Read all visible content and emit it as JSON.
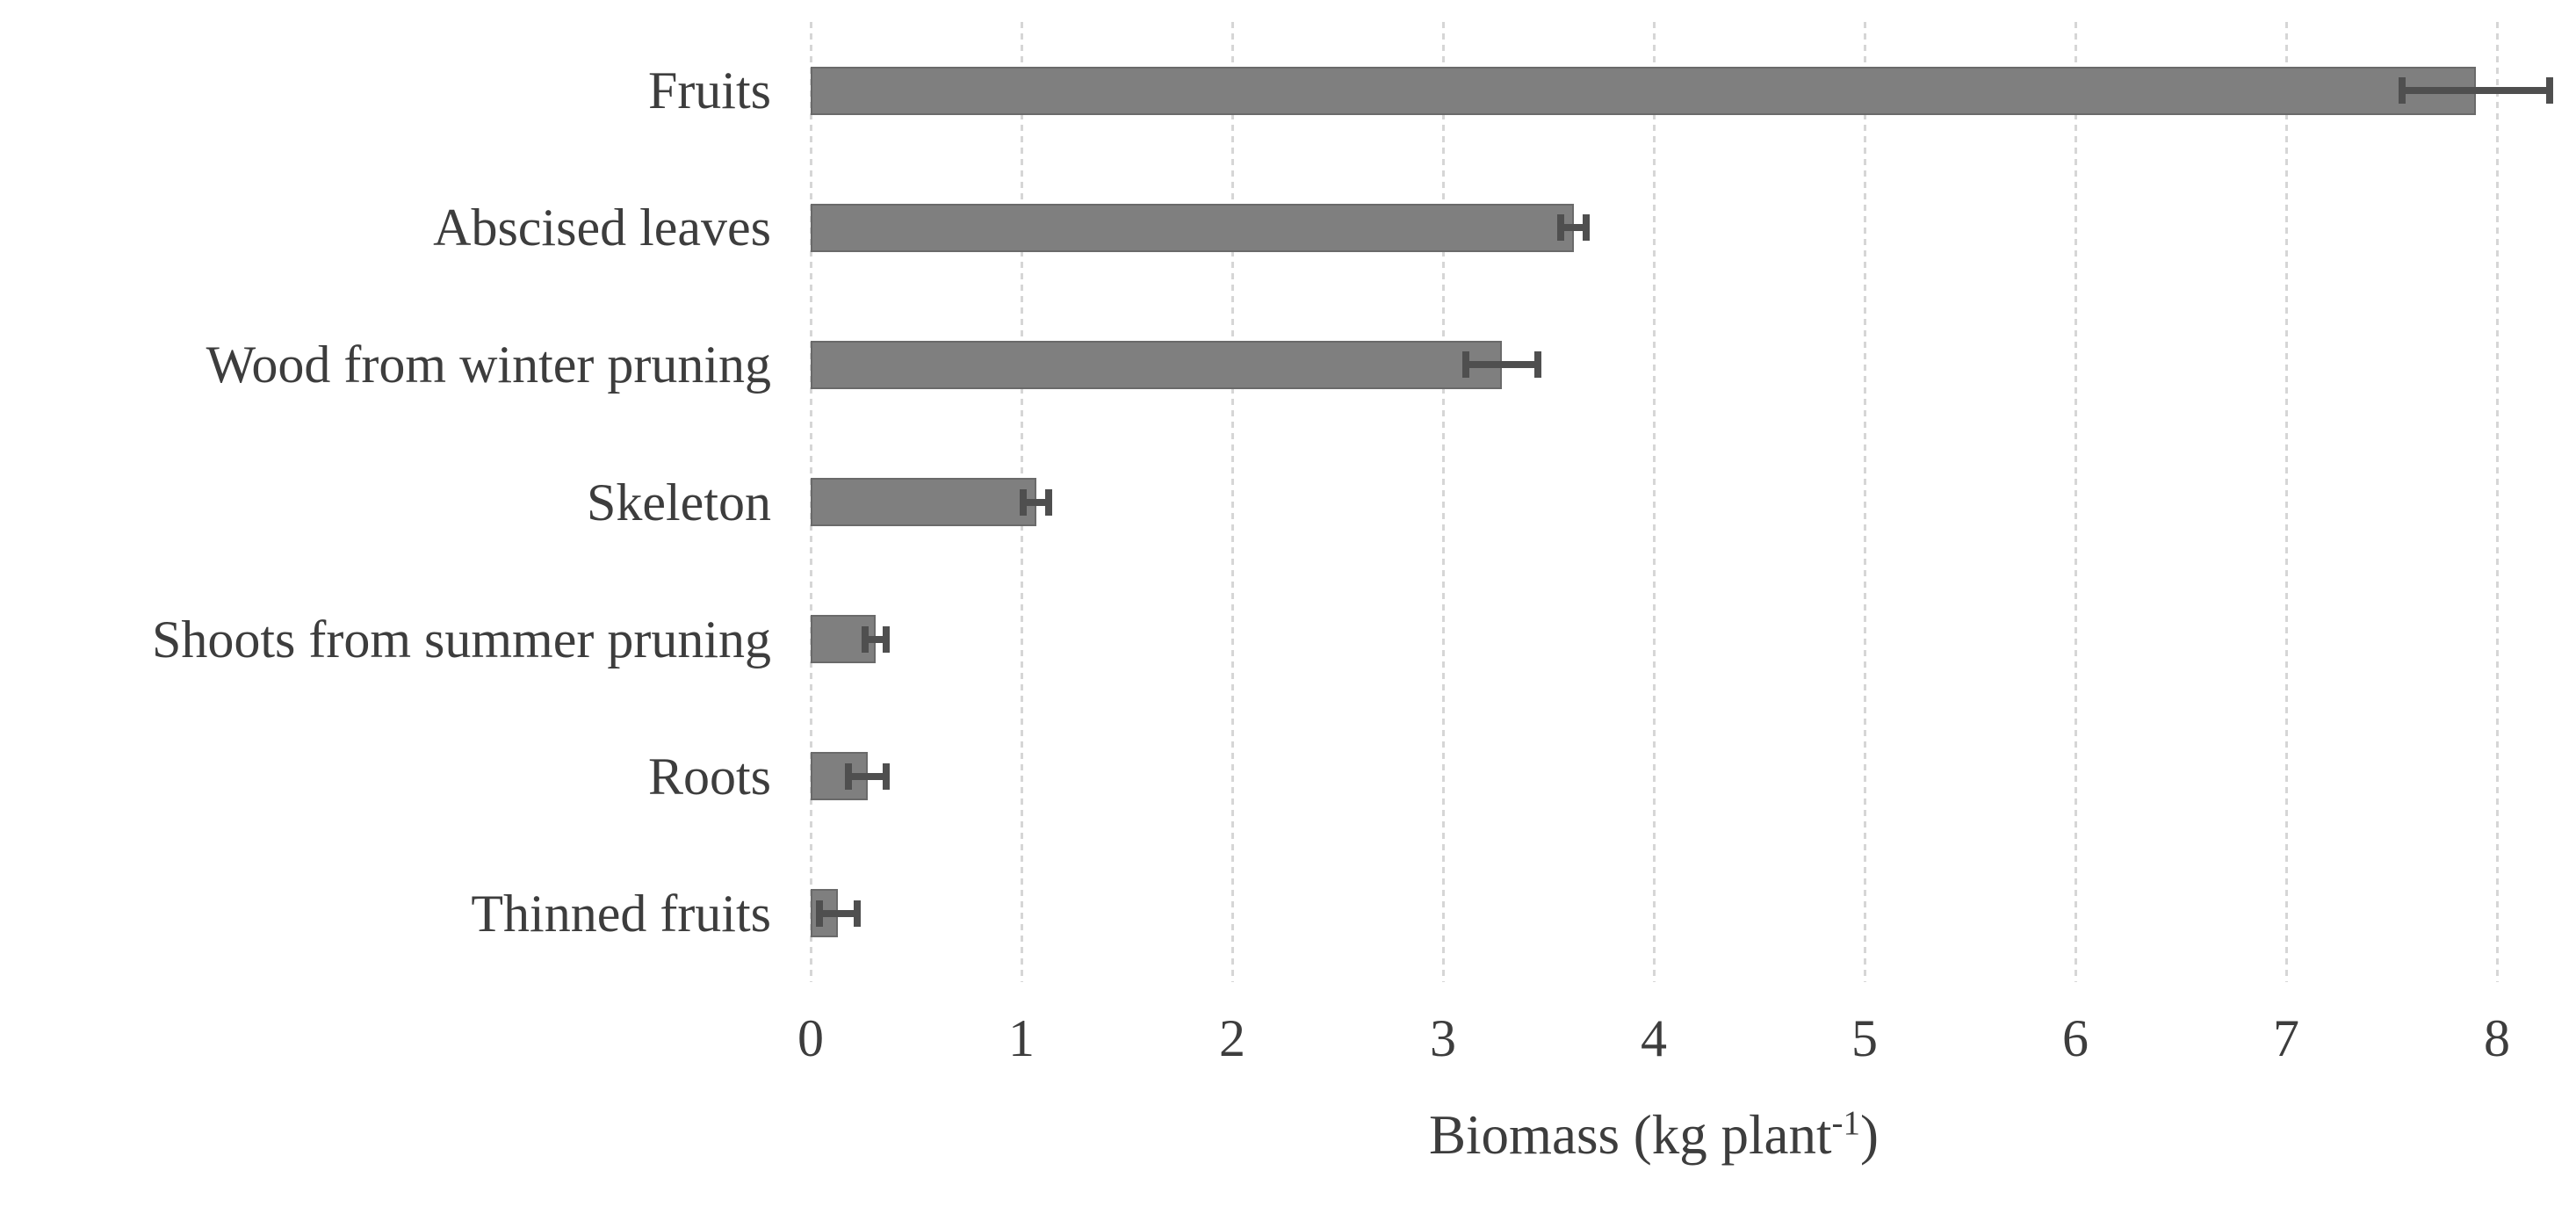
{
  "chart_data": {
    "type": "bar",
    "orientation": "horizontal",
    "title": "",
    "xlabel": "Biomass (kg plant⁻¹)",
    "xlabel_parts": {
      "main": "Biomass (kg plant",
      "sup": "-1",
      "close": ")"
    },
    "categories": [
      "Fruits",
      "Abscised leaves",
      "Wood from winter pruning",
      "Skeleton",
      "Shoots from summer pruning",
      "Roots",
      "Thinned fruits"
    ],
    "values": [
      7.9,
      3.62,
      3.28,
      1.07,
      0.31,
      0.27,
      0.13
    ],
    "errors": [
      0.35,
      0.06,
      0.17,
      0.06,
      0.05,
      0.09,
      0.09
    ],
    "x_ticks": [
      0,
      1,
      2,
      3,
      4,
      5,
      6,
      7,
      8
    ],
    "xlim": [
      0,
      8.4
    ],
    "grid": "vertical-dashed",
    "legend": "none",
    "colors": {
      "bar_fill": "#7f7f7f",
      "bar_border": "#6a6a6a",
      "error_bar": "#4f4f4f",
      "gridline": "#d6d6d6",
      "text": "#3d3d3d",
      "background": "#ffffff"
    }
  }
}
